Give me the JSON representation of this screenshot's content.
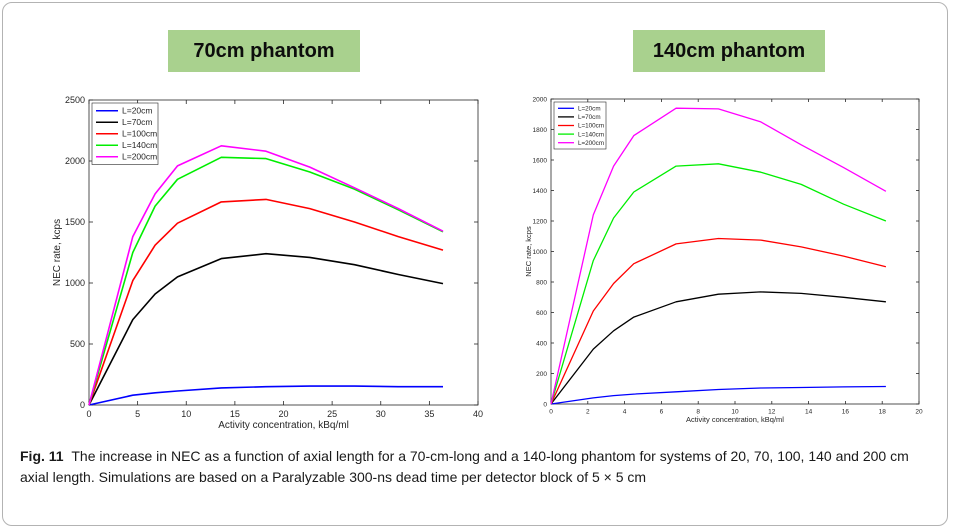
{
  "panels": {
    "left_title": "70cm phantom",
    "right_title": "140cm phantom"
  },
  "caption": {
    "label": "Fig. 11",
    "text": "The increase in NEC as a function of axial length for a 70-cm-long and a 140-long phantom for systems of 20, 70, 100, 140 and 200 cm axial length. Simulations are based on a Paralyzable 300-ns dead time per detector block of 5 × 5 cm"
  },
  "chart_data": [
    {
      "type": "line",
      "title": "70cm phantom",
      "xlabel": "Activity concentration, kBq/ml",
      "ylabel": "NEC rate, kcps",
      "xlim": [
        0,
        40
      ],
      "ylim": [
        0,
        2500
      ],
      "xticks": [
        0,
        5,
        10,
        15,
        20,
        25,
        30,
        35,
        40
      ],
      "yticks": [
        0,
        500,
        1000,
        1500,
        2000,
        2500
      ],
      "legend_position": "top-left",
      "grid": false,
      "x": [
        0,
        4.5,
        6.8,
        9.1,
        13.6,
        18.2,
        22.7,
        27.3,
        31.8,
        36.4
      ],
      "series": [
        {
          "name": "L=20cm",
          "color": "#0000ff",
          "values": [
            0,
            80,
            100,
            115,
            140,
            150,
            155,
            155,
            150,
            150
          ]
        },
        {
          "name": "L=70cm",
          "color": "#000000",
          "values": [
            0,
            700,
            910,
            1050,
            1200,
            1240,
            1210,
            1150,
            1070,
            995
          ]
        },
        {
          "name": "L=100cm",
          "color": "#ff0000",
          "values": [
            0,
            1020,
            1310,
            1490,
            1665,
            1685,
            1610,
            1500,
            1380,
            1270
          ]
        },
        {
          "name": "L=140cm",
          "color": "#00ee00",
          "values": [
            0,
            1250,
            1630,
            1850,
            2030,
            2020,
            1910,
            1770,
            1600,
            1420
          ]
        },
        {
          "name": "L=200cm",
          "color": "#ff00ff",
          "values": [
            0,
            1380,
            1730,
            1960,
            2125,
            2080,
            1950,
            1780,
            1610,
            1425
          ]
        }
      ]
    },
    {
      "type": "line",
      "title": "140cm phantom",
      "xlabel": "Activity concentration, kBq/ml",
      "ylabel": "NEC rate, kcps",
      "xlim": [
        0,
        20
      ],
      "ylim": [
        0,
        2000
      ],
      "xticks": [
        0,
        2,
        4,
        6,
        8,
        10,
        12,
        14,
        16,
        18,
        20
      ],
      "yticks": [
        0,
        200,
        400,
        600,
        800,
        1000,
        1200,
        1400,
        1600,
        1800,
        2000
      ],
      "legend_position": "top-left",
      "grid": false,
      "x": [
        0,
        2.3,
        3.4,
        4.5,
        6.8,
        9.1,
        11.4,
        13.6,
        15.9,
        18.2
      ],
      "series": [
        {
          "name": "L=20cm",
          "color": "#0000ff",
          "values": [
            0,
            40,
            55,
            65,
            80,
            95,
            105,
            108,
            112,
            115
          ]
        },
        {
          "name": "L=70cm",
          "color": "#000000",
          "values": [
            0,
            360,
            480,
            570,
            670,
            720,
            735,
            725,
            700,
            670
          ]
        },
        {
          "name": "L=100cm",
          "color": "#ff0000",
          "values": [
            0,
            610,
            790,
            920,
            1050,
            1085,
            1075,
            1030,
            970,
            900
          ]
        },
        {
          "name": "L=140cm",
          "color": "#00ee00",
          "values": [
            0,
            940,
            1220,
            1390,
            1560,
            1575,
            1520,
            1440,
            1310,
            1200
          ]
        },
        {
          "name": "L=200cm",
          "color": "#ff00ff",
          "values": [
            0,
            1240,
            1560,
            1760,
            1940,
            1935,
            1850,
            1700,
            1550,
            1395
          ]
        }
      ]
    }
  ]
}
